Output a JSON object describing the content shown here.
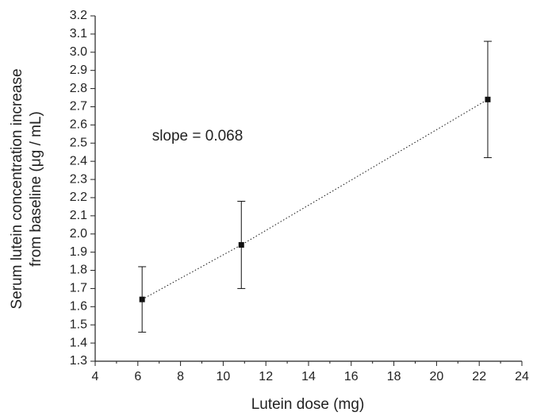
{
  "chart_data": {
    "type": "scatter",
    "xlabel": "Lutein dose (mg)",
    "ylabel_lines": [
      "Serum lutein concentration increase",
      "from baseline (μg / mL)"
    ],
    "annotation": "slope = 0.068",
    "series": [
      {
        "name": "Serum lutein",
        "color": "#111111",
        "x": [
          6.2,
          10.85,
          22.4
        ],
        "values": [
          1.64,
          1.94,
          2.74
        ],
        "errors": [
          0.18,
          0.24,
          0.32
        ]
      }
    ],
    "xlim": [
      4,
      24
    ],
    "xticks": [
      4,
      6,
      8,
      10,
      12,
      14,
      16,
      18,
      20,
      22,
      24
    ],
    "ylim": [
      1.3,
      3.2
    ],
    "yticks": [
      1.3,
      1.4,
      1.5,
      1.6,
      1.7,
      1.8,
      1.9,
      {
        "value": 2,
        "label": "2.0"
      },
      2.1,
      2.2,
      2.3,
      2.4,
      2.5,
      2.6,
      2.7,
      2.8,
      2.9,
      {
        "value": 3,
        "label": "3.0"
      },
      3.1,
      3.2
    ],
    "grid": false
  }
}
